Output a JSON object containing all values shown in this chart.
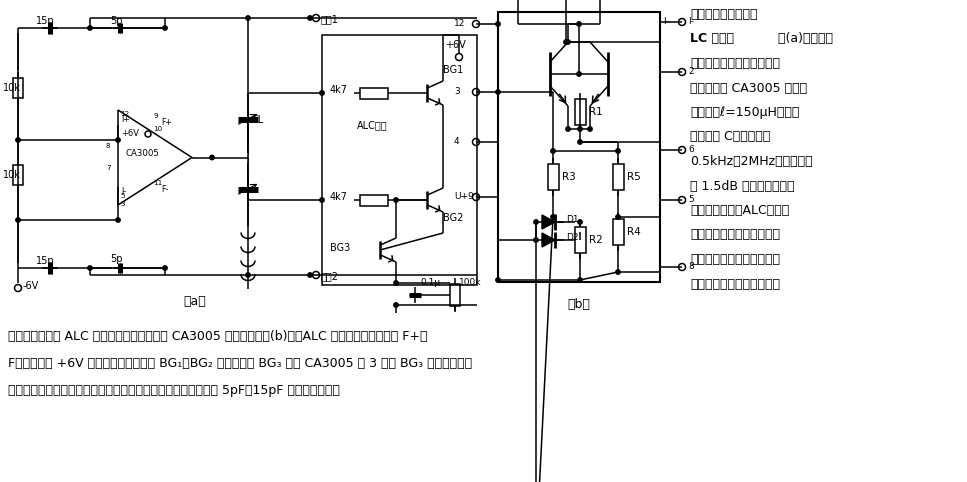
{
  "bg": "#ffffff",
  "fw": 9.67,
  "fh": 4.82,
  "right_title": "输出电平自动控制的",
  "right_lines": [
    "LC 振荡器    图(a)所示的振",
    "荡器的输出振幅可以自动稳",
    "定，采用了 CA3005 差分集",
    "成电路，ℓ=150μH，改变",
    "回路电容 C，可以输出",
    "0.5kHz－2MHz，电平仅变",
    "化 1.5dB 的正弦波。加上",
    "电平自动控制（ALC）后，",
    "不仅可以振幅稳定，而且可",
    "避开开关工作状态而始终处",
    "于线性工作状态，波形失真"
  ],
  "bottom_lines": [
    "很小。为了了解 ALC 工作过程，这里给出了 CA3005 的等效电路如(b)图。ALC 工作过程是：输出端 F+、",
    "F－电平高于 +6V 电源的半周内，通过 BG₁、BG₂ 整流，驱动 BG₃ 导通 CA3005 的 3 脚受 BG₃ 控制使差分对",
    "工作电流减小，增益降低，从而使振幅稳定。正反馈信号是通过 5pF、15pF 电容分压获得。"
  ]
}
